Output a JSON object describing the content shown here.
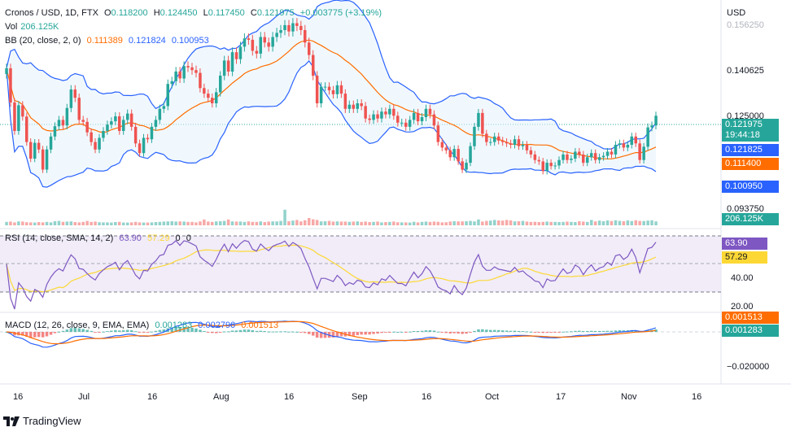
{
  "header": {
    "symbol": "Cronos / USD, 1D, FTX",
    "o_label": "O",
    "o": "0.118200",
    "h_label": "H",
    "h": "0.124450",
    "l_label": "L",
    "l": "0.117450",
    "c_label": "C",
    "c": "0.121975",
    "change": "+0.003775 (+3.19%)",
    "vol_label": "Vol",
    "vol": "206.125K",
    "bb_label": "BB (20, close, 2, 0)",
    "bb_mid": "0.111389",
    "bb_upper": "0.121824",
    "bb_lower": "0.100953"
  },
  "rsi_header": {
    "label": "RSI (14, close, SMA, 14, 2)",
    "rsi": "63.90",
    "sma": "57.29",
    "z1": "0",
    "z2": "0"
  },
  "macd_header": {
    "label": "MACD (12, 26, close, 9, EMA, EMA)",
    "hist": "0.001283",
    "macd": "0.002796",
    "signal": "0.001513"
  },
  "price_axis": {
    "currency": "USD",
    "ticks": [
      "0.156250",
      "0.140625",
      "0.125000",
      "0.093750"
    ]
  },
  "badges": {
    "price": "0.121975",
    "countdown": "19:44:18",
    "bb_upper": "0.121825",
    "bb_mid": "0.111400",
    "bb_lower": "0.100950",
    "volume": "206.125K",
    "rsi": "63.90",
    "rsi_sma": "57.29",
    "macd_signal": "0.001513",
    "macd_hist": "0.001283"
  },
  "rsi_axis": {
    "ticks": [
      "40.00",
      "20.00"
    ]
  },
  "macd_axis": {
    "ticks": [
      "−0.020000"
    ]
  },
  "time_axis": [
    "16",
    "Jul",
    "16",
    "Aug",
    "16",
    "Sep",
    "16",
    "Oct",
    "17",
    "Nov",
    "16"
  ],
  "branding": {
    "logo_text": "TradingView"
  },
  "colors": {
    "up": "#26a69a",
    "down": "#ef5350",
    "bb_band": "#2962ff",
    "bb_mid": "#ff6d00",
    "rsi_line": "#7e57c2",
    "rsi_sma": "#fdd835",
    "macd_line": "#2962ff",
    "signal_line": "#ff6d00"
  },
  "chart_data": {
    "type": "candlestick",
    "closes": [
      0.1392,
      0.1268,
      0.1165,
      0.1258,
      0.1217,
      0.1125,
      0.1065,
      0.1122,
      0.1098,
      0.1025,
      0.1098,
      0.1145,
      0.1182,
      0.1205,
      0.1185,
      0.1248,
      0.1315,
      0.1285,
      0.1205,
      0.1198,
      0.116,
      0.1125,
      0.1098,
      0.114,
      0.1165,
      0.1188,
      0.12,
      0.1218,
      0.1165,
      0.1205,
      0.1228,
      0.118,
      0.112,
      0.1085,
      0.114,
      0.1135,
      0.118,
      0.1205,
      0.1245,
      0.1255,
      0.1335,
      0.1345,
      0.138,
      0.1355,
      0.14,
      0.1395,
      0.1385,
      0.1375,
      0.132,
      0.13,
      0.1285,
      0.1265,
      0.1305,
      0.1365,
      0.142,
      0.138,
      0.145,
      0.1425,
      0.147,
      0.15,
      0.1495,
      0.1455,
      0.1445,
      0.1505,
      0.1485,
      0.147,
      0.1505,
      0.152,
      0.153,
      0.1548,
      0.1525,
      0.1555,
      0.1545,
      0.153,
      0.1485,
      0.144,
      0.1365,
      0.1265,
      0.1325,
      0.1325,
      0.1312,
      0.1298,
      0.133,
      0.13,
      0.1245,
      0.126,
      0.1245,
      0.1265,
      0.1255,
      0.121,
      0.1205,
      0.1225,
      0.121,
      0.1235,
      0.1225,
      0.1245,
      0.122,
      0.1195,
      0.1195,
      0.118,
      0.1205,
      0.123,
      0.12,
      0.1215,
      0.1245,
      0.1225,
      0.1185,
      0.1125,
      0.1105,
      0.1095,
      0.107,
      0.11,
      0.1055,
      0.1025,
      0.105,
      0.111,
      0.118,
      0.123,
      0.1155,
      0.1125,
      0.1125,
      0.1145,
      0.113,
      0.1125,
      0.112,
      0.1115,
      0.1135,
      0.111,
      0.1115,
      0.1095,
      0.108,
      0.106,
      0.1055,
      0.102,
      0.105,
      0.1038,
      0.104,
      0.106,
      0.108,
      0.106,
      0.1065,
      0.109,
      0.108,
      0.105,
      0.107,
      0.1085,
      0.106,
      0.107,
      0.1075,
      0.109,
      0.108,
      0.1115,
      0.112,
      0.1105,
      0.1115,
      0.1145,
      0.112,
      0.106,
      0.1108,
      0.1178,
      0.1185,
      0.122
    ],
    "ylim": [
      0.085,
      0.158
    ],
    "volume": [
      0.35,
      0.38,
      0.3,
      0.4,
      0.38,
      0.32,
      0.3,
      0.28,
      0.33,
      0.3,
      0.35,
      0.3,
      0.42,
      0.45,
      0.36,
      0.38,
      0.4,
      0.33,
      0.3,
      0.35,
      0.45,
      0.35,
      0.38,
      0.32,
      0.3,
      0.3,
      0.28,
      0.33,
      0.36,
      0.28,
      0.28,
      0.3,
      0.35,
      0.3,
      0.28,
      0.28,
      0.3,
      0.33,
      0.35,
      0.38,
      0.4,
      0.42,
      0.38,
      0.4,
      0.38,
      0.35,
      0.35,
      0.3,
      0.4,
      0.6,
      0.38,
      0.35,
      0.4,
      0.42,
      0.45,
      0.6,
      0.4,
      0.38,
      0.38,
      0.35,
      0.4,
      0.35,
      0.35,
      0.4,
      0.33,
      0.38,
      0.4,
      0.4,
      0.45,
      1.6,
      0.42,
      0.48,
      0.55,
      0.4,
      0.52,
      0.75,
      0.62,
      0.55,
      0.4,
      0.42,
      0.45,
      0.38,
      0.4,
      0.38,
      0.38,
      0.36,
      0.38,
      0.4,
      0.35,
      0.38,
      0.33,
      0.35,
      0.38,
      0.3,
      0.33,
      0.35,
      0.38,
      0.32,
      0.3,
      0.3,
      0.28,
      0.36,
      0.3,
      0.35,
      0.38,
      0.35,
      0.38,
      0.36,
      0.3,
      0.32,
      0.38,
      0.42,
      0.4,
      0.4,
      0.42,
      0.45,
      0.4,
      0.6,
      0.38,
      0.45,
      0.48,
      0.55,
      0.5,
      0.48,
      0.55,
      0.5,
      0.4,
      0.42,
      0.45,
      0.38,
      0.35,
      0.36,
      0.33,
      0.35,
      0.38,
      0.35,
      0.35,
      0.33,
      0.35,
      0.38,
      0.35,
      0.33,
      0.42,
      0.38,
      0.35,
      0.55,
      0.4,
      0.48,
      0.42,
      0.5,
      0.44,
      0.52,
      0.45,
      0.42,
      0.5,
      0.44,
      0.52,
      0.45,
      0.44,
      0.48,
      0.52,
      0.4,
      0.38
    ]
  }
}
